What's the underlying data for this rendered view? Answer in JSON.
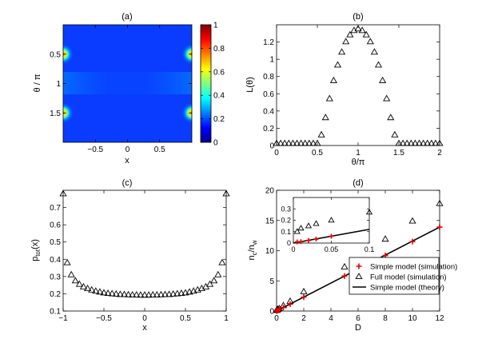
{
  "figure": {
    "panels": [
      "(a)",
      "(b)",
      "(c)",
      "(d)"
    ]
  },
  "chart_data": [
    {
      "id": "a",
      "type": "heatmap",
      "panel_label": "(a)",
      "xlabel": "x",
      "ylabel": "θ / π",
      "xlim": [
        -1,
        1
      ],
      "ylim": [
        0,
        2
      ],
      "y_reversed": true,
      "xticks": [
        -0.5,
        0,
        0.5
      ],
      "xtick_labels": [
        "−0.5",
        "0",
        "0.5"
      ],
      "yticks": [
        0.5,
        1,
        1.5
      ],
      "ytick_labels": [
        "0.5",
        "1",
        "1.5"
      ],
      "background_value": 0.15,
      "hotspots": [
        {
          "x": -1.0,
          "theta": 0.5,
          "peak": 0.95
        },
        {
          "x": -1.0,
          "theta": 1.5,
          "peak": 0.95
        },
        {
          "x": 1.0,
          "theta": 0.5,
          "peak": 0.95
        },
        {
          "x": 1.0,
          "theta": 1.5,
          "peak": 0.95
        }
      ],
      "colorbar": {
        "range": [
          0,
          1
        ],
        "ticks": [
          0,
          0.2,
          0.4,
          0.6,
          0.8,
          1
        ],
        "tick_labels": [
          "0",
          "0.2",
          "0.4",
          "0.6",
          "0.8",
          "1"
        ]
      },
      "colormap": [
        "#00008f",
        "#0000ff",
        "#0080ff",
        "#00ffff",
        "#80ff80",
        "#ffff00",
        "#ff8000",
        "#ff0000",
        "#800000"
      ]
    },
    {
      "id": "b",
      "type": "scatter",
      "panel_label": "(b)",
      "xlabel": "θ/π",
      "ylabel": "L(θ)",
      "xlim": [
        0,
        2
      ],
      "ylim": [
        0,
        1.4
      ],
      "xticks": [
        0,
        0.5,
        1,
        1.5,
        2
      ],
      "xtick_labels": [
        "0",
        "0.5",
        "1",
        "1.5",
        "2"
      ],
      "yticks": [
        0,
        0.2,
        0.4,
        0.6,
        0.8,
        1,
        1.2
      ],
      "ytick_labels": [
        "0",
        "0.2",
        "0.4",
        "0.6",
        "0.8",
        "1",
        "1.2"
      ],
      "series": [
        {
          "name": "L(θ)",
          "marker": "triangle",
          "x": [
            0,
            0.05,
            0.1,
            0.15,
            0.2,
            0.25,
            0.3,
            0.35,
            0.4,
            0.45,
            0.5,
            0.55,
            0.6,
            0.65,
            0.7,
            0.75,
            0.8,
            0.85,
            0.9,
            0.95,
            1.0,
            1.05,
            1.1,
            1.15,
            1.2,
            1.25,
            1.3,
            1.35,
            1.4,
            1.45,
            1.5,
            1.55,
            1.6,
            1.65,
            1.7,
            1.75,
            1.8,
            1.85,
            1.9,
            1.95,
            2.0
          ],
          "y": [
            0,
            0,
            0,
            0,
            0,
            0,
            0,
            0,
            0,
            0,
            0,
            0.1,
            0.3,
            0.52,
            0.73,
            0.91,
            1.06,
            1.18,
            1.26,
            1.31,
            1.33,
            1.31,
            1.26,
            1.18,
            1.06,
            0.91,
            0.73,
            0.52,
            0.3,
            0.1,
            0,
            0,
            0,
            0,
            0,
            0,
            0,
            0,
            0,
            0,
            0
          ]
        }
      ]
    },
    {
      "id": "c",
      "type": "scatter",
      "panel_label": "(c)",
      "xlabel": "x",
      "ylabel": "p_tot(x)",
      "ylabel_main": "p",
      "ylabel_sub": "tot",
      "ylabel_tail": "(x)",
      "xlim": [
        -1,
        1
      ],
      "ylim": [
        0.1,
        0.8
      ],
      "xticks": [
        -1,
        -0.5,
        0,
        0.5,
        1
      ],
      "xtick_labels": [
        "−1",
        "−0.5",
        "0",
        "0.5",
        "1"
      ],
      "yticks": [
        0.1,
        0.2,
        0.3,
        0.4,
        0.5,
        0.6,
        0.7
      ],
      "ytick_labels": [
        "0.1",
        "0.2",
        "0.3",
        "0.4",
        "0.5",
        "0.6",
        "0.7"
      ],
      "series": [
        {
          "name": "p_tot(x)",
          "marker": "triangle",
          "x": [
            -1,
            -0.95,
            -0.9,
            -0.85,
            -0.8,
            -0.75,
            -0.7,
            -0.65,
            -0.6,
            -0.55,
            -0.5,
            -0.45,
            -0.4,
            -0.35,
            -0.3,
            -0.25,
            -0.2,
            -0.15,
            -0.1,
            -0.05,
            0,
            0.05,
            0.1,
            0.15,
            0.2,
            0.25,
            0.3,
            0.35,
            0.4,
            0.45,
            0.5,
            0.55,
            0.6,
            0.65,
            0.7,
            0.75,
            0.8,
            0.85,
            0.9,
            0.95,
            1
          ],
          "y": [
            0.78,
            0.38,
            0.31,
            0.275,
            0.255,
            0.24,
            0.23,
            0.222,
            0.215,
            0.21,
            0.205,
            0.202,
            0.2,
            0.198,
            0.196,
            0.195,
            0.194,
            0.193,
            0.193,
            0.192,
            0.192,
            0.192,
            0.193,
            0.193,
            0.194,
            0.195,
            0.196,
            0.198,
            0.2,
            0.202,
            0.205,
            0.21,
            0.215,
            0.222,
            0.23,
            0.24,
            0.255,
            0.275,
            0.31,
            0.38,
            0.78
          ]
        }
      ]
    },
    {
      "id": "d",
      "type": "scatter",
      "panel_label": "(d)",
      "xlabel": "D",
      "ylabel": "n_c/n_w",
      "ylabel_parts": [
        "n",
        "c",
        "/n",
        "w"
      ],
      "xlim": [
        0,
        12
      ],
      "ylim": [
        0,
        20
      ],
      "xticks": [
        0,
        2,
        4,
        6,
        8,
        10,
        12
      ],
      "xtick_labels": [
        "0",
        "2",
        "4",
        "6",
        "8",
        "10",
        "12"
      ],
      "yticks": [
        0,
        5,
        10,
        15,
        20
      ],
      "ytick_labels": [
        "0",
        "5",
        "10",
        "15",
        "20"
      ],
      "series": [
        {
          "name": "Simple model (simulation)",
          "marker": "plus",
          "color": "#e00000",
          "x": [
            0.005,
            0.01,
            0.02,
            0.03,
            0.05,
            0.1,
            0.2,
            0.5,
            1,
            2,
            5,
            8,
            10,
            12
          ],
          "y": [
            0.01,
            0.012,
            0.023,
            0.035,
            0.06,
            0.12,
            0.24,
            0.58,
            1.15,
            2.3,
            5.8,
            9.2,
            11.5,
            13.9
          ]
        },
        {
          "name": "Full model (simulation)",
          "marker": "triangle",
          "color": "#000000",
          "x": [
            0.005,
            0.01,
            0.02,
            0.03,
            0.05,
            0.1,
            0.2,
            0.5,
            1,
            2,
            5,
            8,
            10,
            12
          ],
          "y": [
            0.1,
            0.13,
            0.15,
            0.17,
            0.2,
            0.27,
            0.4,
            0.9,
            1.6,
            3.2,
            7.3,
            11.9,
            14.9,
            17.8
          ]
        },
        {
          "name": "Simple model (theory)",
          "marker": "line",
          "color": "#000000",
          "x": [
            0,
            12
          ],
          "y": [
            0,
            13.9
          ]
        }
      ],
      "legend": {
        "location": "bottom-right",
        "entries": [
          "Simple model (simulation)",
          "Full model (simulation)",
          "Simple model (theory)"
        ]
      },
      "inset": {
        "xlim": [
          0,
          0.1
        ],
        "ylim": [
          0,
          0.4
        ],
        "xticks": [
          0,
          0.05,
          0.1
        ],
        "xtick_labels": [
          "0",
          "0.05",
          "0.1"
        ],
        "yticks": [
          0,
          0.1,
          0.2,
          0.3
        ],
        "ytick_labels": [
          "0",
          "0.1",
          "0.2",
          "0.3"
        ],
        "series": [
          {
            "name": "Simple model (simulation)",
            "marker": "plus",
            "x": [
              0.005,
              0.01,
              0.02,
              0.03,
              0.05
            ],
            "y": [
              0.01,
              0.012,
              0.023,
              0.035,
              0.06
            ]
          },
          {
            "name": "Full model (simulation)",
            "marker": "triangle",
            "x": [
              0.005,
              0.01,
              0.02,
              0.03,
              0.05,
              0.1
            ],
            "y": [
              0.1,
              0.13,
              0.15,
              0.17,
              0.2,
              0.27
            ]
          },
          {
            "name": "Simple model (theory)",
            "marker": "line",
            "x": [
              0,
              0.1
            ],
            "y": [
              0,
              0.12
            ]
          }
        ]
      }
    }
  ]
}
